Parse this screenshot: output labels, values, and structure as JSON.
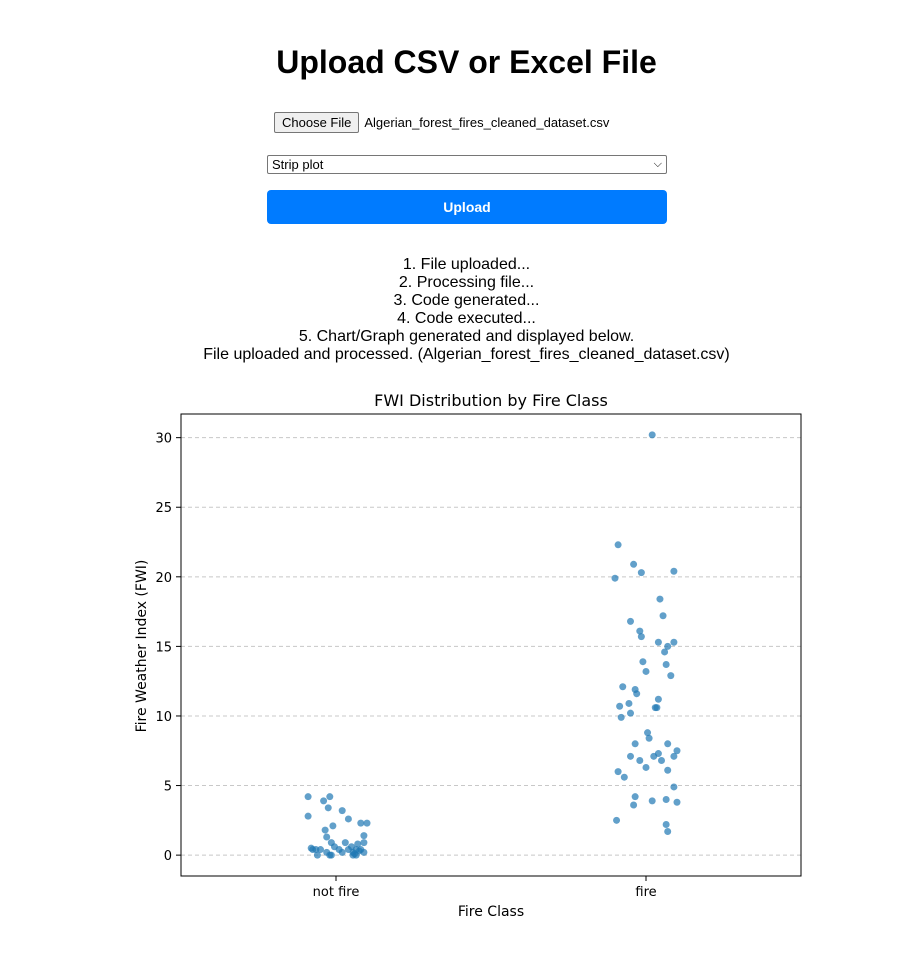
{
  "page": {
    "title": "Upload CSV or Excel File"
  },
  "upload_form": {
    "choose_file_label": "Choose File",
    "selected_file": "Algerian_forest_fires_cleaned_dataset.csv",
    "chart_type_selected": "Strip plot",
    "upload_label": "Upload",
    "accent_color": "#007bff"
  },
  "status_lines": [
    "1. File uploaded...",
    "2. Processing file...",
    "3. Code generated...",
    "4. Code executed...",
    "5. Chart/Graph generated and displayed below.",
    "File uploaded and processed. (Algerian_forest_fires_cleaned_dataset.csv)"
  ],
  "chart_data": {
    "type": "scatter",
    "title": "FWI Distribution by Fire Class",
    "xlabel": "Fire Class",
    "ylabel": "Fire Weather Index (FWI)",
    "categories": [
      "not fire",
      "fire"
    ],
    "yticks": [
      0,
      5,
      10,
      15,
      20,
      25,
      30
    ],
    "ylim": [
      -1.5,
      31.7
    ],
    "grid": "y dashed",
    "point_color": "#1f77b4",
    "points": [
      {
        "x": "not fire",
        "jitter": -0.09,
        "y": 2.8
      },
      {
        "x": "not fire",
        "jitter": -0.09,
        "y": 4.2
      },
      {
        "x": "not fire",
        "jitter": -0.04,
        "y": 3.9
      },
      {
        "x": "not fire",
        "jitter": -0.02,
        "y": 4.2
      },
      {
        "x": "not fire",
        "jitter": -0.025,
        "y": 3.4
      },
      {
        "x": "not fire",
        "jitter": 0.02,
        "y": 3.2
      },
      {
        "x": "not fire",
        "jitter": 0.04,
        "y": 2.6
      },
      {
        "x": "not fire",
        "jitter": 0.08,
        "y": 2.3
      },
      {
        "x": "not fire",
        "jitter": 0.1,
        "y": 2.3
      },
      {
        "x": "not fire",
        "jitter": -0.01,
        "y": 2.1
      },
      {
        "x": "not fire",
        "jitter": -0.035,
        "y": 1.8
      },
      {
        "x": "not fire",
        "jitter": -0.03,
        "y": 1.3
      },
      {
        "x": "not fire",
        "jitter": 0.09,
        "y": 1.4
      },
      {
        "x": "not fire",
        "jitter": -0.015,
        "y": 0.9
      },
      {
        "x": "not fire",
        "jitter": 0.03,
        "y": 0.9
      },
      {
        "x": "not fire",
        "jitter": 0.07,
        "y": 0.8
      },
      {
        "x": "not fire",
        "jitter": 0.09,
        "y": 0.9
      },
      {
        "x": "not fire",
        "jitter": -0.005,
        "y": 0.6
      },
      {
        "x": "not fire",
        "jitter": 0.05,
        "y": 0.6
      },
      {
        "x": "not fire",
        "jitter": -0.08,
        "y": 0.5
      },
      {
        "x": "not fire",
        "jitter": -0.075,
        "y": 0.4
      },
      {
        "x": "not fire",
        "jitter": -0.065,
        "y": 0.4
      },
      {
        "x": "not fire",
        "jitter": -0.05,
        "y": 0.4
      },
      {
        "x": "not fire",
        "jitter": 0.01,
        "y": 0.4
      },
      {
        "x": "not fire",
        "jitter": 0.04,
        "y": 0.4
      },
      {
        "x": "not fire",
        "jitter": 0.065,
        "y": 0.4
      },
      {
        "x": "not fire",
        "jitter": 0.08,
        "y": 0.4
      },
      {
        "x": "not fire",
        "jitter": -0.03,
        "y": 0.2
      },
      {
        "x": "not fire",
        "jitter": 0.02,
        "y": 0.2
      },
      {
        "x": "not fire",
        "jitter": 0.055,
        "y": 0.2
      },
      {
        "x": "not fire",
        "jitter": 0.075,
        "y": 0.3
      },
      {
        "x": "not fire",
        "jitter": 0.09,
        "y": 0.2
      },
      {
        "x": "not fire",
        "jitter": -0.06,
        "y": 0.0
      },
      {
        "x": "not fire",
        "jitter": -0.02,
        "y": 0.0
      },
      {
        "x": "not fire",
        "jitter": -0.015,
        "y": 0.0
      },
      {
        "x": "not fire",
        "jitter": 0.055,
        "y": 0.0
      },
      {
        "x": "not fire",
        "jitter": 0.065,
        "y": 0.0
      },
      {
        "x": "not fire",
        "jitter": 0.06,
        "y": 0.1
      },
      {
        "x": "fire",
        "jitter": 0.02,
        "y": 30.2
      },
      {
        "x": "fire",
        "jitter": -0.09,
        "y": 22.3
      },
      {
        "x": "fire",
        "jitter": -0.04,
        "y": 20.9
      },
      {
        "x": "fire",
        "jitter": -0.1,
        "y": 19.9
      },
      {
        "x": "fire",
        "jitter": -0.015,
        "y": 20.3
      },
      {
        "x": "fire",
        "jitter": 0.09,
        "y": 20.4
      },
      {
        "x": "fire",
        "jitter": 0.045,
        "y": 18.4
      },
      {
        "x": "fire",
        "jitter": 0.055,
        "y": 17.2
      },
      {
        "x": "fire",
        "jitter": -0.05,
        "y": 16.8
      },
      {
        "x": "fire",
        "jitter": -0.02,
        "y": 16.1
      },
      {
        "x": "fire",
        "jitter": -0.015,
        "y": 15.7
      },
      {
        "x": "fire",
        "jitter": 0.04,
        "y": 15.3
      },
      {
        "x": "fire",
        "jitter": 0.09,
        "y": 15.3
      },
      {
        "x": "fire",
        "jitter": 0.07,
        "y": 15.0
      },
      {
        "x": "fire",
        "jitter": 0.06,
        "y": 14.6
      },
      {
        "x": "fire",
        "jitter": -0.01,
        "y": 13.9
      },
      {
        "x": "fire",
        "jitter": 0.065,
        "y": 13.7
      },
      {
        "x": "fire",
        "jitter": 0.0,
        "y": 13.2
      },
      {
        "x": "fire",
        "jitter": 0.08,
        "y": 12.9
      },
      {
        "x": "fire",
        "jitter": -0.075,
        "y": 12.1
      },
      {
        "x": "fire",
        "jitter": -0.035,
        "y": 11.9
      },
      {
        "x": "fire",
        "jitter": -0.03,
        "y": 11.6
      },
      {
        "x": "fire",
        "jitter": 0.04,
        "y": 11.2
      },
      {
        "x": "fire",
        "jitter": -0.055,
        "y": 10.9
      },
      {
        "x": "fire",
        "jitter": -0.085,
        "y": 10.7
      },
      {
        "x": "fire",
        "jitter": 0.03,
        "y": 10.6
      },
      {
        "x": "fire",
        "jitter": 0.035,
        "y": 10.6
      },
      {
        "x": "fire",
        "jitter": -0.05,
        "y": 10.2
      },
      {
        "x": "fire",
        "jitter": -0.08,
        "y": 9.9
      },
      {
        "x": "fire",
        "jitter": 0.005,
        "y": 8.8
      },
      {
        "x": "fire",
        "jitter": 0.01,
        "y": 8.4
      },
      {
        "x": "fire",
        "jitter": -0.035,
        "y": 8.0
      },
      {
        "x": "fire",
        "jitter": 0.07,
        "y": 8.0
      },
      {
        "x": "fire",
        "jitter": 0.1,
        "y": 7.5
      },
      {
        "x": "fire",
        "jitter": 0.04,
        "y": 7.3
      },
      {
        "x": "fire",
        "jitter": -0.05,
        "y": 7.1
      },
      {
        "x": "fire",
        "jitter": 0.025,
        "y": 7.1
      },
      {
        "x": "fire",
        "jitter": 0.09,
        "y": 7.1
      },
      {
        "x": "fire",
        "jitter": -0.02,
        "y": 6.8
      },
      {
        "x": "fire",
        "jitter": 0.05,
        "y": 6.8
      },
      {
        "x": "fire",
        "jitter": 0.0,
        "y": 6.3
      },
      {
        "x": "fire",
        "jitter": 0.07,
        "y": 6.1
      },
      {
        "x": "fire",
        "jitter": -0.09,
        "y": 6.0
      },
      {
        "x": "fire",
        "jitter": -0.07,
        "y": 5.6
      },
      {
        "x": "fire",
        "jitter": 0.09,
        "y": 4.9
      },
      {
        "x": "fire",
        "jitter": -0.035,
        "y": 4.2
      },
      {
        "x": "fire",
        "jitter": 0.02,
        "y": 3.9
      },
      {
        "x": "fire",
        "jitter": 0.065,
        "y": 4.0
      },
      {
        "x": "fire",
        "jitter": 0.1,
        "y": 3.8
      },
      {
        "x": "fire",
        "jitter": -0.04,
        "y": 3.6
      },
      {
        "x": "fire",
        "jitter": -0.095,
        "y": 2.5
      },
      {
        "x": "fire",
        "jitter": 0.065,
        "y": 2.2
      },
      {
        "x": "fire",
        "jitter": 0.07,
        "y": 1.7
      }
    ]
  }
}
